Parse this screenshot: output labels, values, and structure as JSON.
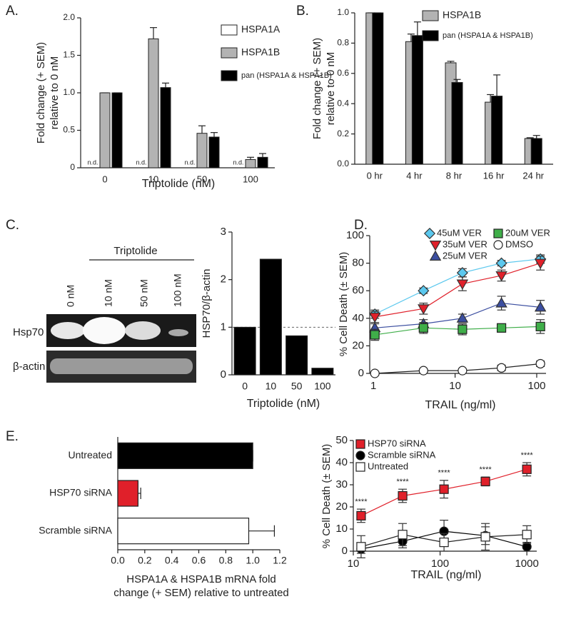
{
  "chart_data": [
    {
      "type": "bar",
      "panel": "A.",
      "ylabel": [
        "Fold change (+ SEM)",
        "relative to 0 nM"
      ],
      "xlabel": "Triptolide (nM)",
      "categories": [
        "0",
        "10",
        "50",
        "100"
      ],
      "ylim": [
        0,
        2
      ],
      "yticks": [
        0,
        0.5,
        {
          "value": 1,
          "label": "1.0"
        },
        1.5,
        {
          "value": 2,
          "label": "2.0"
        }
      ],
      "series": [
        {
          "name": "HSPA1A",
          "color": "#ffffff",
          "values": [
            null,
            null,
            null,
            null
          ],
          "value_labels": [
            "n.d.",
            "n.d.",
            "n.d.",
            "n.d."
          ]
        },
        {
          "name": "HSPA1B",
          "color": "#b3b3b3",
          "values": [
            1.0,
            1.72,
            0.46,
            0.11
          ],
          "errors": [
            0,
            0.15,
            0.1,
            0.03
          ]
        },
        {
          "name": "pan (HSPA1A & HSPA1B)",
          "color": "#000000",
          "values": [
            1.0,
            1.07,
            0.41,
            0.14
          ],
          "errors": [
            0,
            0.06,
            0.06,
            0.05
          ]
        }
      ]
    },
    {
      "type": "bar",
      "panel": "B.",
      "ylabel": [
        "Fold change (+ SEM)",
        "relative to 0 nM"
      ],
      "categories": [
        "0 hr",
        "4 hr",
        "8 hr",
        "16 hr",
        "24 hr"
      ],
      "ylim": [
        0,
        1
      ],
      "yticks": [
        {
          "value": 0,
          "label": "0.0"
        },
        0.2,
        0.4,
        0.6,
        0.8,
        {
          "value": 1,
          "label": "1.0"
        }
      ],
      "series": [
        {
          "name": "HSPA1B",
          "color": "#b3b3b3",
          "values": [
            1.0,
            0.81,
            0.67,
            0.41,
            0.17
          ],
          "errors": [
            0,
            0.05,
            0.01,
            0.05,
            0.005
          ]
        },
        {
          "name": "pan (HSPA1A & HSPA1B)",
          "color": "#000000",
          "values": [
            1.0,
            0.85,
            0.54,
            0.45,
            0.17
          ],
          "errors": [
            0,
            0.09,
            0.02,
            0.14,
            0.02
          ]
        }
      ]
    },
    {
      "type": "bar",
      "panel": "C.",
      "ylabel": [
        "HSP70/β-actin"
      ],
      "xlabel": "Triptolide (nM)",
      "categories": [
        "0",
        "10",
        "50",
        "100"
      ],
      "ylim": [
        0,
        3
      ],
      "yticks": [
        0,
        1,
        2,
        3
      ],
      "refline": 1,
      "series": [
        {
          "color": "#000000",
          "values": [
            1.0,
            2.43,
            0.82,
            0.14
          ]
        }
      ]
    },
    {
      "type": "line",
      "panel": "D.",
      "ylabel": [
        "% Cell Death (± SEM)"
      ],
      "xlabel": "TRAIL (ng/ml)",
      "xscale": "log",
      "x": [
        1.04,
        4.1,
        12.3,
        37,
        111
      ],
      "xlim": [
        0.9,
        130
      ],
      "xticks": [
        1,
        10,
        100
      ],
      "ylim": [
        0,
        100
      ],
      "yticks": [
        0,
        20,
        40,
        60,
        80,
        100
      ],
      "series": [
        {
          "name": "45uM VER",
          "color": "#5bc8ee",
          "marker": "diamond",
          "values": [
            43,
            60,
            73,
            80,
            83
          ],
          "errors": [
            3,
            2,
            3,
            2,
            3
          ]
        },
        {
          "name": "35uM VER",
          "color": "#e0202a",
          "marker": "tridown",
          "values": [
            41,
            47,
            65,
            71,
            80
          ],
          "errors": [
            4,
            4,
            5,
            4,
            5
          ]
        },
        {
          "name": "25uM VER",
          "color": "#3b4ea0",
          "marker": "triup",
          "values": [
            33,
            36,
            40,
            51,
            48
          ],
          "errors": [
            3,
            3,
            3,
            5,
            5
          ]
        },
        {
          "name": "20uM VER",
          "color": "#3fae49",
          "marker": "square",
          "values": [
            28,
            33,
            32,
            33,
            34
          ],
          "errors": [
            4,
            4,
            4,
            3,
            5
          ]
        },
        {
          "name": "DMSO",
          "color": "#ffffff",
          "marker": "circle",
          "values": [
            0,
            2,
            2,
            4,
            7
          ],
          "errors": [
            1,
            1,
            1,
            2,
            2
          ]
        }
      ]
    },
    {
      "type": "hbar",
      "panel": "E.",
      "xlabel": [
        "HSPA1A & HSPA1B mRNA fold",
        "change (+ SEM) relative to untreated"
      ],
      "categories": [
        "Untreated",
        "HSP70 siRNA",
        "Scramble siRNA"
      ],
      "xlim": [
        0,
        1.2
      ],
      "xticks": [
        {
          "value": 0,
          "label": "0.0"
        },
        0.2,
        0.4,
        0.6,
        0.8,
        {
          "value": 1,
          "label": "1.0"
        },
        1.2
      ],
      "colors": [
        "#000000",
        "#e0202a",
        "#ffffff"
      ],
      "values": [
        1.0,
        0.15,
        0.97
      ],
      "errors": [
        0,
        0.02,
        0.19
      ]
    },
    {
      "type": "line",
      "ylabel": [
        "% Cell Death (± SEM)"
      ],
      "xlabel": "TRAIL (ng/ml)",
      "xscale": "log",
      "x": [
        12.3,
        37,
        111,
        333,
        1000
      ],
      "xlim": [
        10,
        1300
      ],
      "xticks": [
        10,
        100,
        1000
      ],
      "ylim": [
        0,
        50
      ],
      "yticks": [
        0,
        10,
        20,
        30,
        40,
        50
      ],
      "annotations": [
        "****",
        "****",
        "****",
        "****",
        "****"
      ],
      "series": [
        {
          "name": "HSP70 siRNA",
          "color": "#e0202a",
          "text_color": "#e0202a",
          "marker": "square",
          "values": [
            16,
            25,
            28,
            31.5,
            37
          ],
          "errors": [
            3,
            3,
            4,
            2,
            3
          ]
        },
        {
          "name": "Scramble siRNA",
          "color": "#000000",
          "marker": "circle",
          "values": [
            1,
            4.5,
            9,
            7,
            2
          ],
          "errors": [
            2,
            3,
            5,
            4,
            2
          ]
        },
        {
          "name": "Untreated",
          "color": "#ffffff",
          "marker": "square",
          "values": [
            2,
            7.5,
            4,
            6.5,
            7.5
          ],
          "errors": [
            5,
            5,
            4,
            6,
            4
          ]
        }
      ]
    }
  ],
  "blot": {
    "treatment": "Triptolide",
    "lanes": [
      "0 nM",
      "10 nM",
      "50 nM",
      "100 nM"
    ],
    "rows": [
      "Hsp70",
      "β-actin"
    ]
  }
}
